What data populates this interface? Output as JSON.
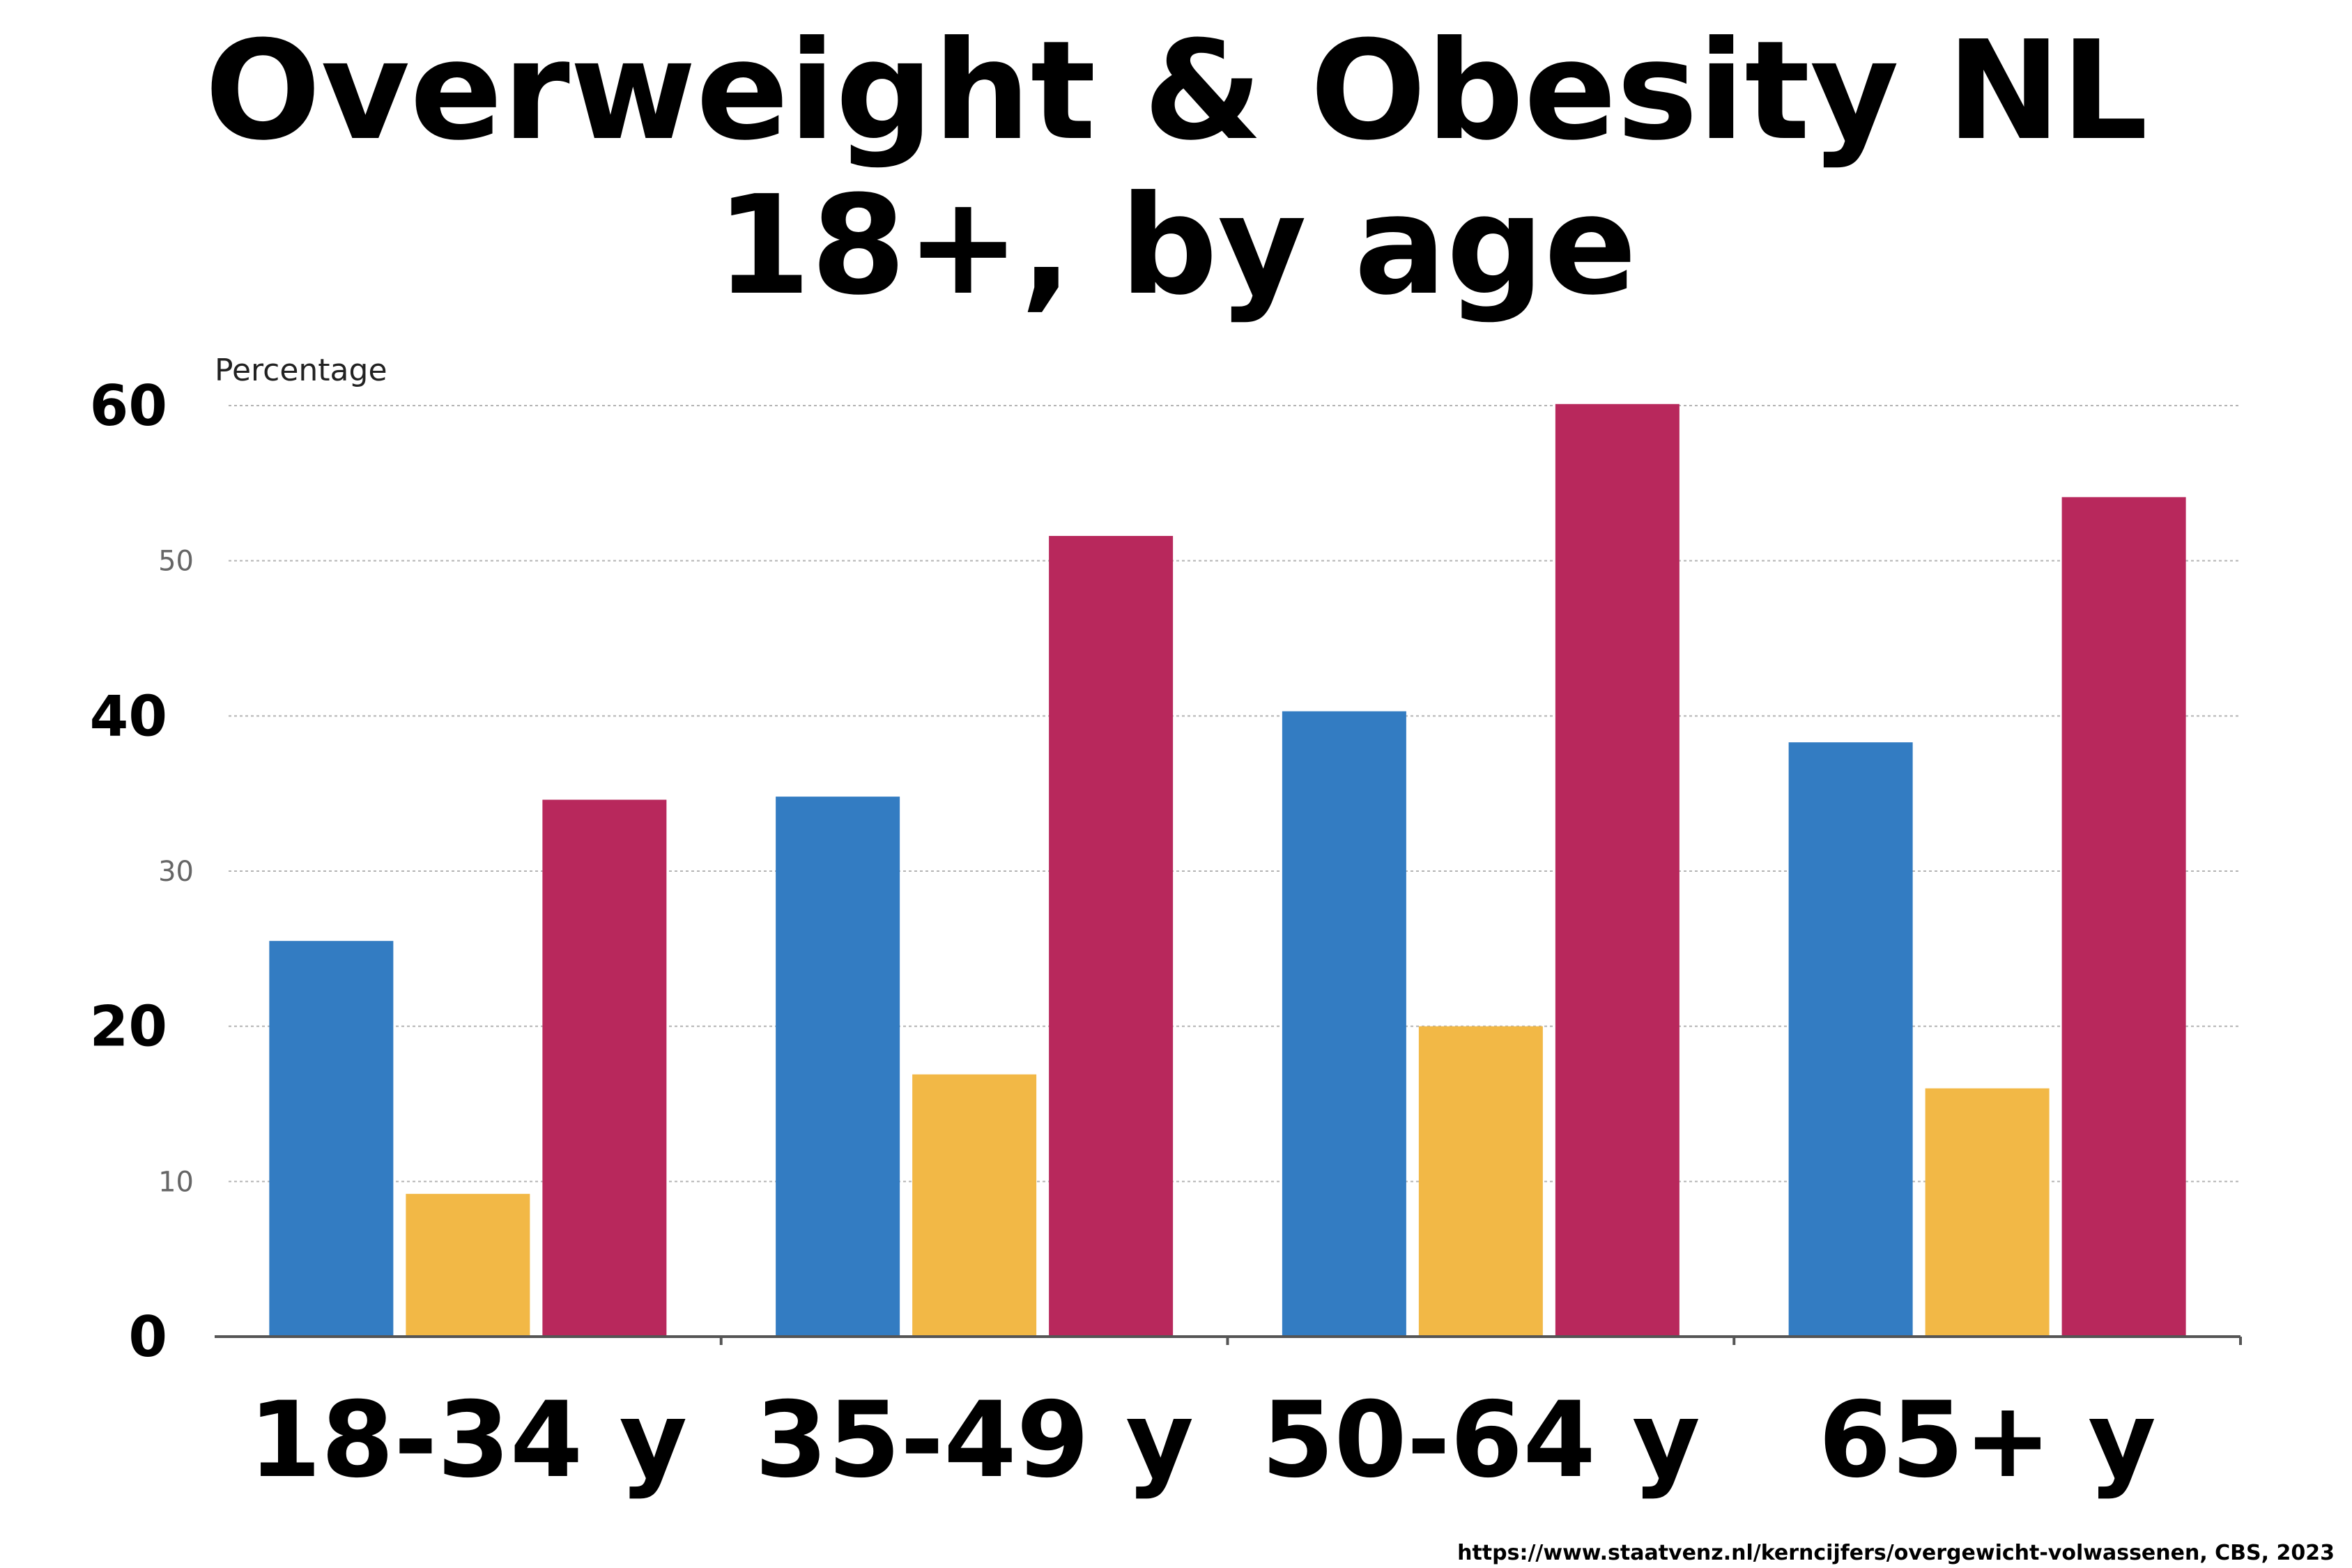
{
  "title_line1": "Overweight & Obesity NL",
  "title_line2": "18+, by age",
  "source": "https://www.staatvenz.nl/kerncijfers/overgewicht-volwassenen, CBS, 2023",
  "chart_data": {
    "type": "bar",
    "ylabel": "Percentage",
    "xlabel": "",
    "ylim": [
      0,
      60
    ],
    "yticks": [
      {
        "value": 0,
        "label": "0",
        "emphasis": true
      },
      {
        "value": 10,
        "label": "10",
        "emphasis": false
      },
      {
        "value": 20,
        "label": "20",
        "emphasis": true
      },
      {
        "value": 30,
        "label": "30",
        "emphasis": false
      },
      {
        "value": 40,
        "label": "40",
        "emphasis": true
      },
      {
        "value": 50,
        "label": "50",
        "emphasis": false
      },
      {
        "value": 60,
        "label": "60",
        "emphasis": true
      }
    ],
    "grid": true,
    "categories": [
      "18-34 y",
      "35-49 y",
      "50-64 y",
      "65+ y"
    ],
    "series": [
      {
        "color": "#337cc2",
        "values": [
          25.5,
          34.8,
          40.3,
          38.3
        ]
      },
      {
        "color": "#f2b846",
        "values": [
          9.2,
          16.9,
          20.0,
          16.0
        ]
      },
      {
        "color": "#b8285c",
        "values": [
          34.6,
          51.6,
          60.1,
          54.1
        ]
      }
    ]
  }
}
